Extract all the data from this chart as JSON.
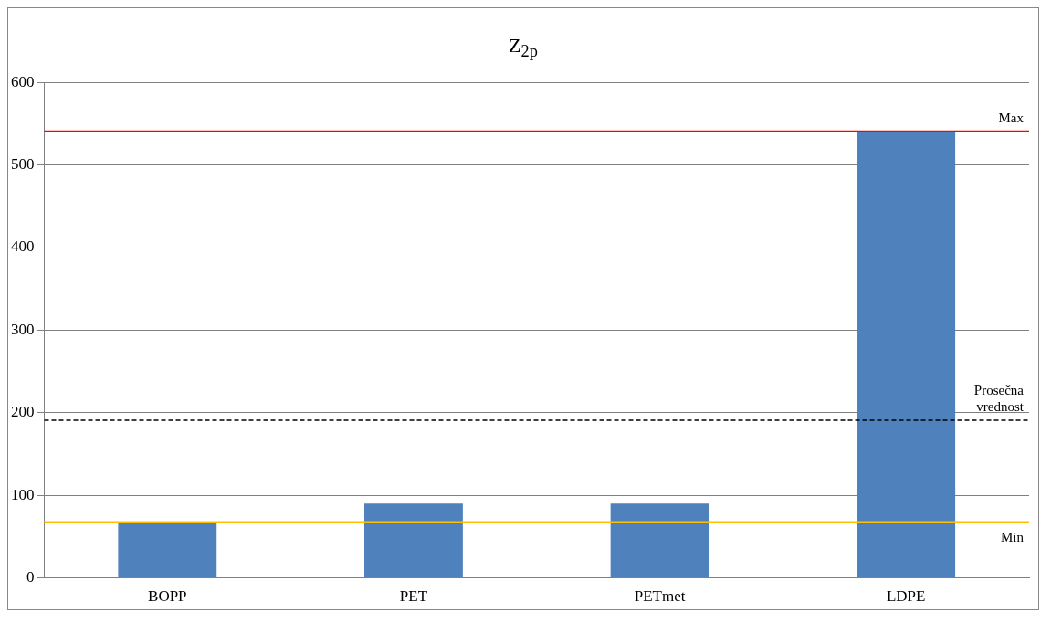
{
  "chart_data": {
    "type": "bar",
    "title": "Z$_{2p}$",
    "categories": [
      "BOPP",
      "PET",
      "PETmet",
      "LDPE"
    ],
    "values": [
      68,
      90,
      90,
      541
    ],
    "color": "#4f81bd",
    "ylim": [
      0,
      600
    ],
    "yticks": [
      0,
      100,
      200,
      300,
      400,
      500,
      600
    ],
    "grid": "y",
    "legend": false,
    "ref_lines": [
      {
        "axis": "y",
        "value": 541,
        "label": "Max",
        "color": "#ff0000",
        "line_style": "solid"
      },
      {
        "axis": "y",
        "value": 191,
        "label": "Prosečna vrednost",
        "color": "#000000",
        "line_style": "dashed"
      },
      {
        "axis": "y",
        "value": 68,
        "label": "Min",
        "color": "#ffc000",
        "line_style": "solid"
      }
    ]
  }
}
